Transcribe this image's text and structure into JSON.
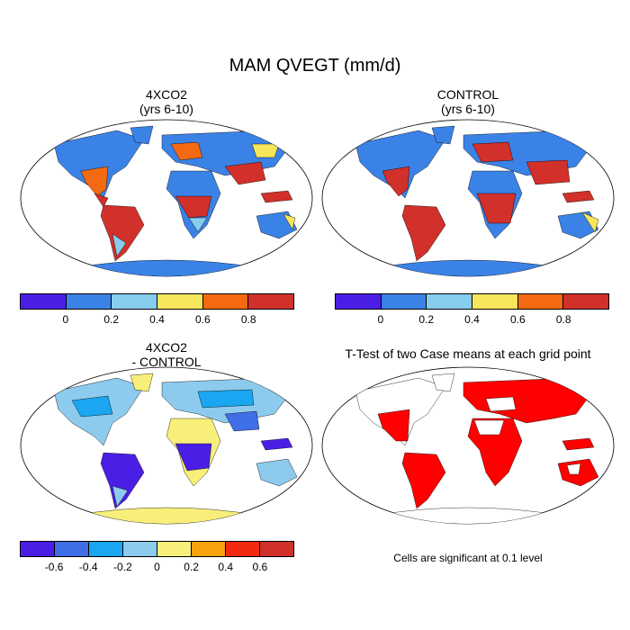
{
  "main_title": "MAM QVEGT (mm/d)",
  "panels": {
    "top_left": {
      "title_line1": "4XCO2",
      "title_line2": "(yrs 6-10)"
    },
    "top_right": {
      "title_line1": "CONTROL",
      "title_line2": "(yrs 6-10)"
    },
    "bottom_left": {
      "title_line1": "4XCO2",
      "title_line2": "- CONTROL"
    },
    "bottom_right": {
      "title_line1": "T-Test of two Case means at each grid point"
    }
  },
  "colorbars": {
    "top": {
      "colors": [
        "#4b1ee6",
        "#3b82e6",
        "#87cdee",
        "#f7e65a",
        "#f46a12",
        "#d2302a"
      ],
      "labels": [
        "0",
        "0.2",
        "0.4",
        "0.6",
        "0.8"
      ]
    },
    "bottom": {
      "colors": [
        "#4b1ee6",
        "#3f6ee6",
        "#1aa6f0",
        "#8ccbee",
        "#f8ef7a",
        "#f8a20e",
        "#f42a10",
        "#d2302a"
      ],
      "labels": [
        "-0.6",
        "-0.4",
        "-0.2",
        "0",
        "0.2",
        "0.4",
        "0.6"
      ]
    }
  },
  "significance_note": "Cells are significant at 0.1 level",
  "map_colors": {
    "ocean": "#ffffff",
    "significant": "#ff0000"
  }
}
